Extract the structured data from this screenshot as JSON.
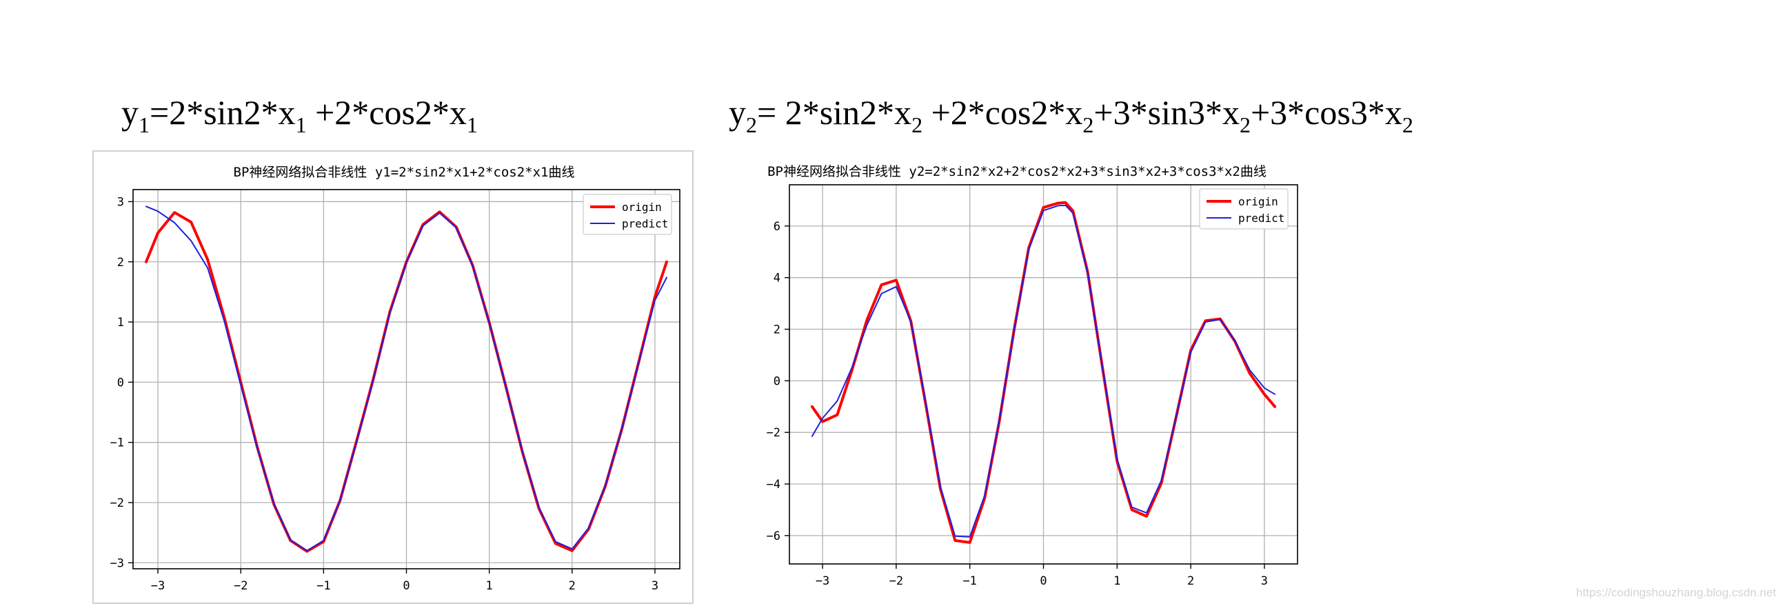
{
  "formulas": {
    "f1": {
      "y": "y",
      "y_sub": "1",
      "eq": "=2*sin2*x",
      "s1": "1",
      "mid": " +2*cos2*x",
      "s2": "1"
    },
    "f2": {
      "y": "y",
      "y_sub": "2",
      "eq": "= 2*sin2*x",
      "s1": "2",
      "a": " +2*cos2*x",
      "s2": "2",
      "b": "+3*sin3*x",
      "s3": "2",
      "c": "+3*cos3*x",
      "s4": "2"
    }
  },
  "watermark": "https://codingshouzhang.blog.csdn.net",
  "colors": {
    "origin": "#ff0000",
    "predict": "#1f1fe0",
    "grid": "#b0b0b0",
    "axis": "#000000"
  },
  "chart_data": [
    {
      "type": "line",
      "title": "BP神经网络拟合非线性   y1=2*sin2*x1+2*cos2*x1曲线",
      "xlabel": "",
      "ylabel": "",
      "xlim": [
        -3.3,
        3.3
      ],
      "ylim": [
        -3.1,
        3.2
      ],
      "xticks": [
        -3,
        -2,
        -1,
        0,
        1,
        2,
        3
      ],
      "yticks": [
        -3,
        -2,
        -1,
        0,
        1,
        2,
        3
      ],
      "grid": true,
      "legend": "top-right",
      "x": [
        -3.1416,
        -3.0,
        -2.8,
        -2.6,
        -2.4,
        -2.2,
        -2.0,
        -1.8,
        -1.6,
        -1.4,
        -1.2,
        -1.0,
        -0.8,
        -0.6,
        -0.4,
        -0.2,
        0.0,
        0.2,
        0.4,
        0.6,
        0.8,
        1.0,
        1.2,
        1.4,
        1.6,
        1.8,
        2.0,
        2.2,
        2.4,
        2.6,
        2.8,
        3.0,
        3.1416
      ],
      "series": [
        {
          "name": "origin",
          "values": [
            2.0,
            2.48,
            2.82,
            2.66,
            2.04,
            1.08,
            -0.0,
            -1.08,
            -2.03,
            -2.63,
            -2.81,
            -2.65,
            -1.96,
            -0.97,
            0.05,
            1.17,
            2.0,
            2.62,
            2.83,
            2.58,
            1.94,
            0.99,
            -0.07,
            -1.16,
            -2.1,
            -2.68,
            -2.8,
            -2.44,
            -1.73,
            -0.78,
            0.31,
            1.42,
            2.0
          ]
        },
        {
          "name": "predict",
          "values": [
            2.92,
            2.84,
            2.65,
            2.35,
            1.9,
            1.02,
            -0.05,
            -1.1,
            -2.02,
            -2.62,
            -2.8,
            -2.63,
            -1.96,
            -0.98,
            0.04,
            1.15,
            1.99,
            2.6,
            2.81,
            2.57,
            1.93,
            0.98,
            -0.08,
            -1.15,
            -2.08,
            -2.65,
            -2.77,
            -2.42,
            -1.72,
            -0.78,
            0.3,
            1.36,
            1.74
          ]
        }
      ]
    },
    {
      "type": "line",
      "title": "BP神经网络拟合非线性 y2=2*sin2*x2+2*cos2*x2+3*sin3*x2+3*cos3*x2曲线",
      "xlabel": "",
      "ylabel": "",
      "xlim": [
        -3.45,
        3.45
      ],
      "ylim": [
        -7.1,
        7.6
      ],
      "xticks": [
        -3,
        -2,
        -1,
        0,
        1,
        2,
        3
      ],
      "yticks": [
        -6,
        -4,
        -2,
        0,
        2,
        4,
        6
      ],
      "grid": true,
      "legend": "top-right",
      "x": [
        -3.1416,
        -3.0,
        -2.8,
        -2.6,
        -2.4,
        -2.2,
        -2.0,
        -1.8,
        -1.6,
        -1.4,
        -1.2,
        -1.0,
        -0.8,
        -0.6,
        -0.4,
        -0.2,
        0.0,
        0.2,
        0.3,
        0.4,
        0.6,
        0.8,
        1.0,
        1.2,
        1.4,
        1.6,
        1.8,
        2.0,
        2.2,
        2.4,
        2.6,
        2.8,
        3.0,
        3.1416
      ],
      "series": [
        {
          "name": "origin",
          "values": [
            -1.0,
            -1.58,
            -1.32,
            0.42,
            2.34,
            3.72,
            3.9,
            2.31,
            -0.89,
            -4.19,
            -6.19,
            -6.27,
            -4.56,
            -1.58,
            1.96,
            5.15,
            6.72,
            6.89,
            6.91,
            6.59,
            4.22,
            0.54,
            -3.12,
            -5.0,
            -5.25,
            -3.97,
            -1.42,
            1.18,
            2.33,
            2.4,
            1.53,
            0.29,
            -0.52,
            -1.0
          ]
        },
        {
          "name": "predict",
          "values": [
            -2.15,
            -1.45,
            -0.78,
            0.52,
            2.15,
            3.38,
            3.65,
            2.29,
            -0.82,
            -4.1,
            -6.02,
            -6.05,
            -4.45,
            -1.52,
            1.94,
            5.08,
            6.6,
            6.79,
            6.8,
            6.5,
            4.18,
            0.55,
            -3.04,
            -4.9,
            -5.12,
            -3.87,
            -1.4,
            1.1,
            2.28,
            2.38,
            1.55,
            0.42,
            -0.28,
            -0.52
          ]
        }
      ]
    }
  ]
}
